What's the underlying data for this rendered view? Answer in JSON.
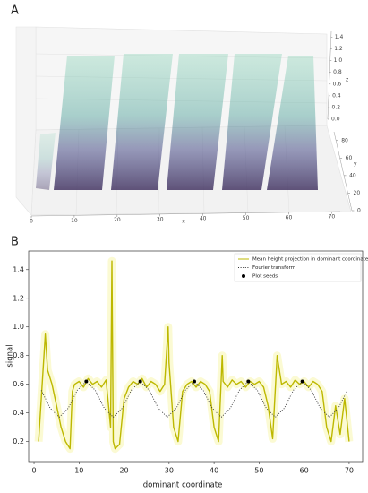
{
  "chart_data": [
    {
      "type": "scatter3d",
      "panel_label": "A",
      "xlabel": "x",
      "ylabel": "y",
      "zlabel": "z",
      "xlim": [
        0,
        72
      ],
      "ylim": [
        0,
        90
      ],
      "zlim": [
        0,
        1.5
      ],
      "xticks": [
        0,
        10,
        20,
        30,
        40,
        50,
        60,
        70
      ],
      "yticks": [
        0,
        20,
        40,
        60,
        80
      ],
      "zticks": [
        {
          "value": 0,
          "label": "0.0"
        },
        0.2,
        0.4,
        0.6,
        0.8,
        {
          "value": 1,
          "label": "1.0"
        },
        1.2,
        1.4
      ]
    },
    {
      "type": "line",
      "panel_label": "B",
      "xlabel": "dominant coordinate",
      "ylabel": "signal",
      "xlim": [
        -1.2,
        73
      ],
      "ylim": [
        0.06,
        1.53
      ],
      "xticks": [
        0,
        10,
        20,
        30,
        40,
        50,
        60,
        70
      ],
      "yticks": [
        0.2,
        0.4,
        0.6,
        0.8,
        {
          "value": 1,
          "label": "1.0"
        },
        1.2,
        1.4
      ],
      "legend": "upper right",
      "series": [
        {
          "name": "Mean height projection in dominant coordinate",
          "color": "#bdb800",
          "linestyle": "solid",
          "x": [
            1,
            2,
            2.5,
            3,
            4,
            5,
            6,
            7,
            8,
            8.5,
            9,
            10,
            11,
            12,
            13,
            14,
            15,
            16,
            17,
            17.3,
            17.6,
            18,
            19,
            20,
            21,
            22,
            23,
            24,
            25,
            26,
            27,
            28,
            29,
            29.8,
            30,
            31,
            32,
            33,
            34,
            35,
            36,
            37,
            38,
            39,
            40,
            41,
            41.8,
            42,
            43,
            44,
            45,
            46,
            47,
            48,
            49,
            50,
            51,
            52,
            53,
            54,
            55,
            56,
            57,
            58,
            59,
            60,
            61,
            62,
            63,
            64,
            65,
            66,
            67,
            68,
            69,
            70
          ],
          "values": [
            0.2,
            0.7,
            0.95,
            0.7,
            0.6,
            0.45,
            0.3,
            0.2,
            0.15,
            0.55,
            0.6,
            0.62,
            0.58,
            0.64,
            0.6,
            0.62,
            0.58,
            0.63,
            0.3,
            1.46,
            0.2,
            0.15,
            0.18,
            0.5,
            0.58,
            0.62,
            0.6,
            0.64,
            0.58,
            0.62,
            0.6,
            0.55,
            0.6,
            1.0,
            0.75,
            0.3,
            0.2,
            0.55,
            0.6,
            0.62,
            0.58,
            0.62,
            0.6,
            0.55,
            0.3,
            0.2,
            0.8,
            0.62,
            0.58,
            0.63,
            0.6,
            0.62,
            0.58,
            0.62,
            0.6,
            0.62,
            0.58,
            0.45,
            0.22,
            0.8,
            0.6,
            0.62,
            0.58,
            0.63,
            0.6,
            0.62,
            0.58,
            0.62,
            0.6,
            0.55,
            0.3,
            0.2,
            0.45,
            0.25,
            0.5,
            0.2
          ]
        },
        {
          "name": "Fourier transform",
          "color": "#333333",
          "linestyle": "dotted",
          "x": [
            1.6,
            3.6,
            5.6,
            7.6,
            9.6,
            11.6,
            13.6,
            15.6,
            17.6,
            19.6,
            21.6,
            23.6,
            25.6,
            27.6,
            29.6,
            31.6,
            33.6,
            35.6,
            37.6,
            39.6,
            41.6,
            43.6,
            45.6,
            47.6,
            49.6,
            51.6,
            53.6,
            55.6,
            57.6,
            59.6,
            61.6,
            63.6,
            65.6,
            67.6,
            69.6
          ],
          "values": [
            0.558,
            0.433,
            0.37,
            0.433,
            0.558,
            0.62,
            0.558,
            0.433,
            0.37,
            0.433,
            0.558,
            0.62,
            0.558,
            0.433,
            0.37,
            0.433,
            0.558,
            0.62,
            0.558,
            0.433,
            0.37,
            0.433,
            0.558,
            0.62,
            0.558,
            0.433,
            0.37,
            0.433,
            0.558,
            0.62,
            0.558,
            0.433,
            0.37,
            0.433,
            0.558
          ]
        },
        {
          "name": "Plot seeds",
          "color": "#000000",
          "marker": "o",
          "x": [
            11.6,
            23.6,
            35.6,
            47.6,
            59.6
          ],
          "values": [
            0.62,
            0.62,
            0.62,
            0.62,
            0.62
          ]
        }
      ]
    }
  ]
}
